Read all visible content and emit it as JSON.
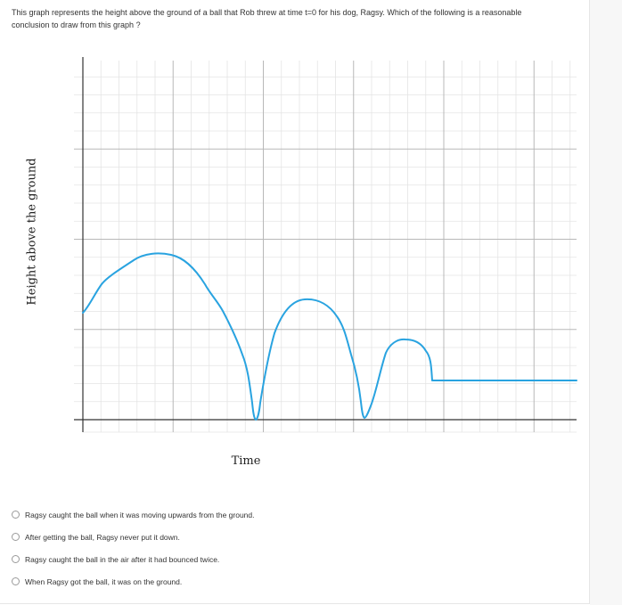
{
  "question": {
    "text": "This graph represents the height above the ground of a ball that Rob threw at time t=0 for his dog, Ragsy. Which of the following is a reasonable conclusion to draw from this graph ?"
  },
  "graph": {
    "x_axis_label": "Time",
    "y_axis_label": "Height above the ground",
    "line_color": "#29a3e0",
    "grid_color": "#e4e4e4",
    "major_grid_color": "#b8b8b8"
  },
  "choices": [
    {
      "label": "Ragsy caught the ball when it was moving upwards from the ground."
    },
    {
      "label": "After getting the ball, Ragsy never put it down."
    },
    {
      "label": "Ragsy caught the ball in the air after it had bounced twice."
    },
    {
      "label": "When Ragsy got the ball, it was on the ground."
    }
  ]
}
